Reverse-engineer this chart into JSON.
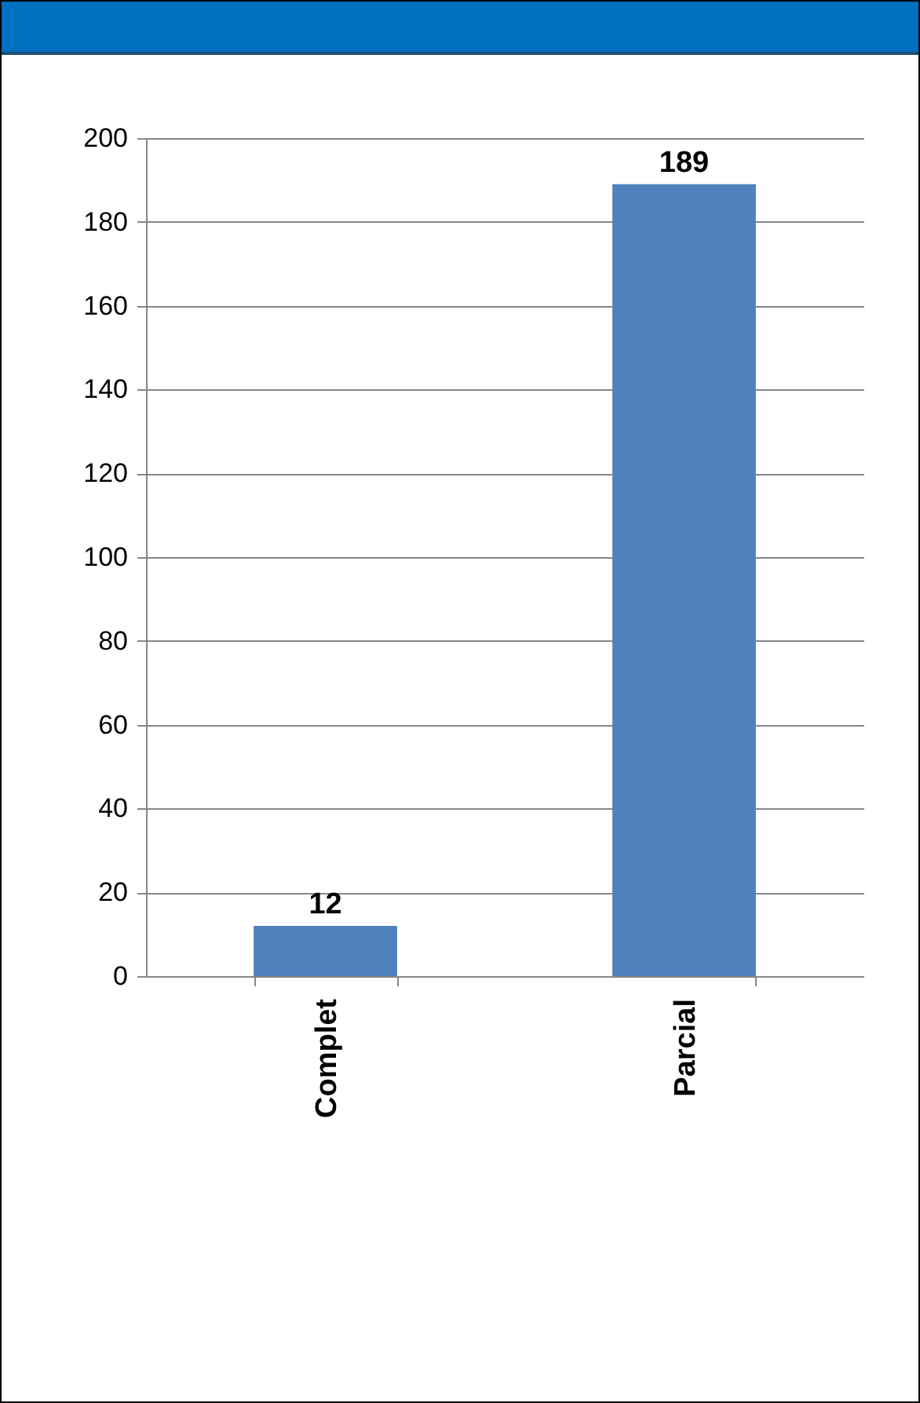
{
  "chart_data": {
    "type": "bar",
    "categories": [
      "Complet",
      "Parcial"
    ],
    "values": [
      12,
      189
    ],
    "color": "#4f81bd",
    "ylim": [
      0,
      200
    ],
    "yticks": [
      0,
      20,
      40,
      60,
      80,
      100,
      120,
      140,
      160,
      180,
      200
    ],
    "grid": "y",
    "data_labels": true
  }
}
